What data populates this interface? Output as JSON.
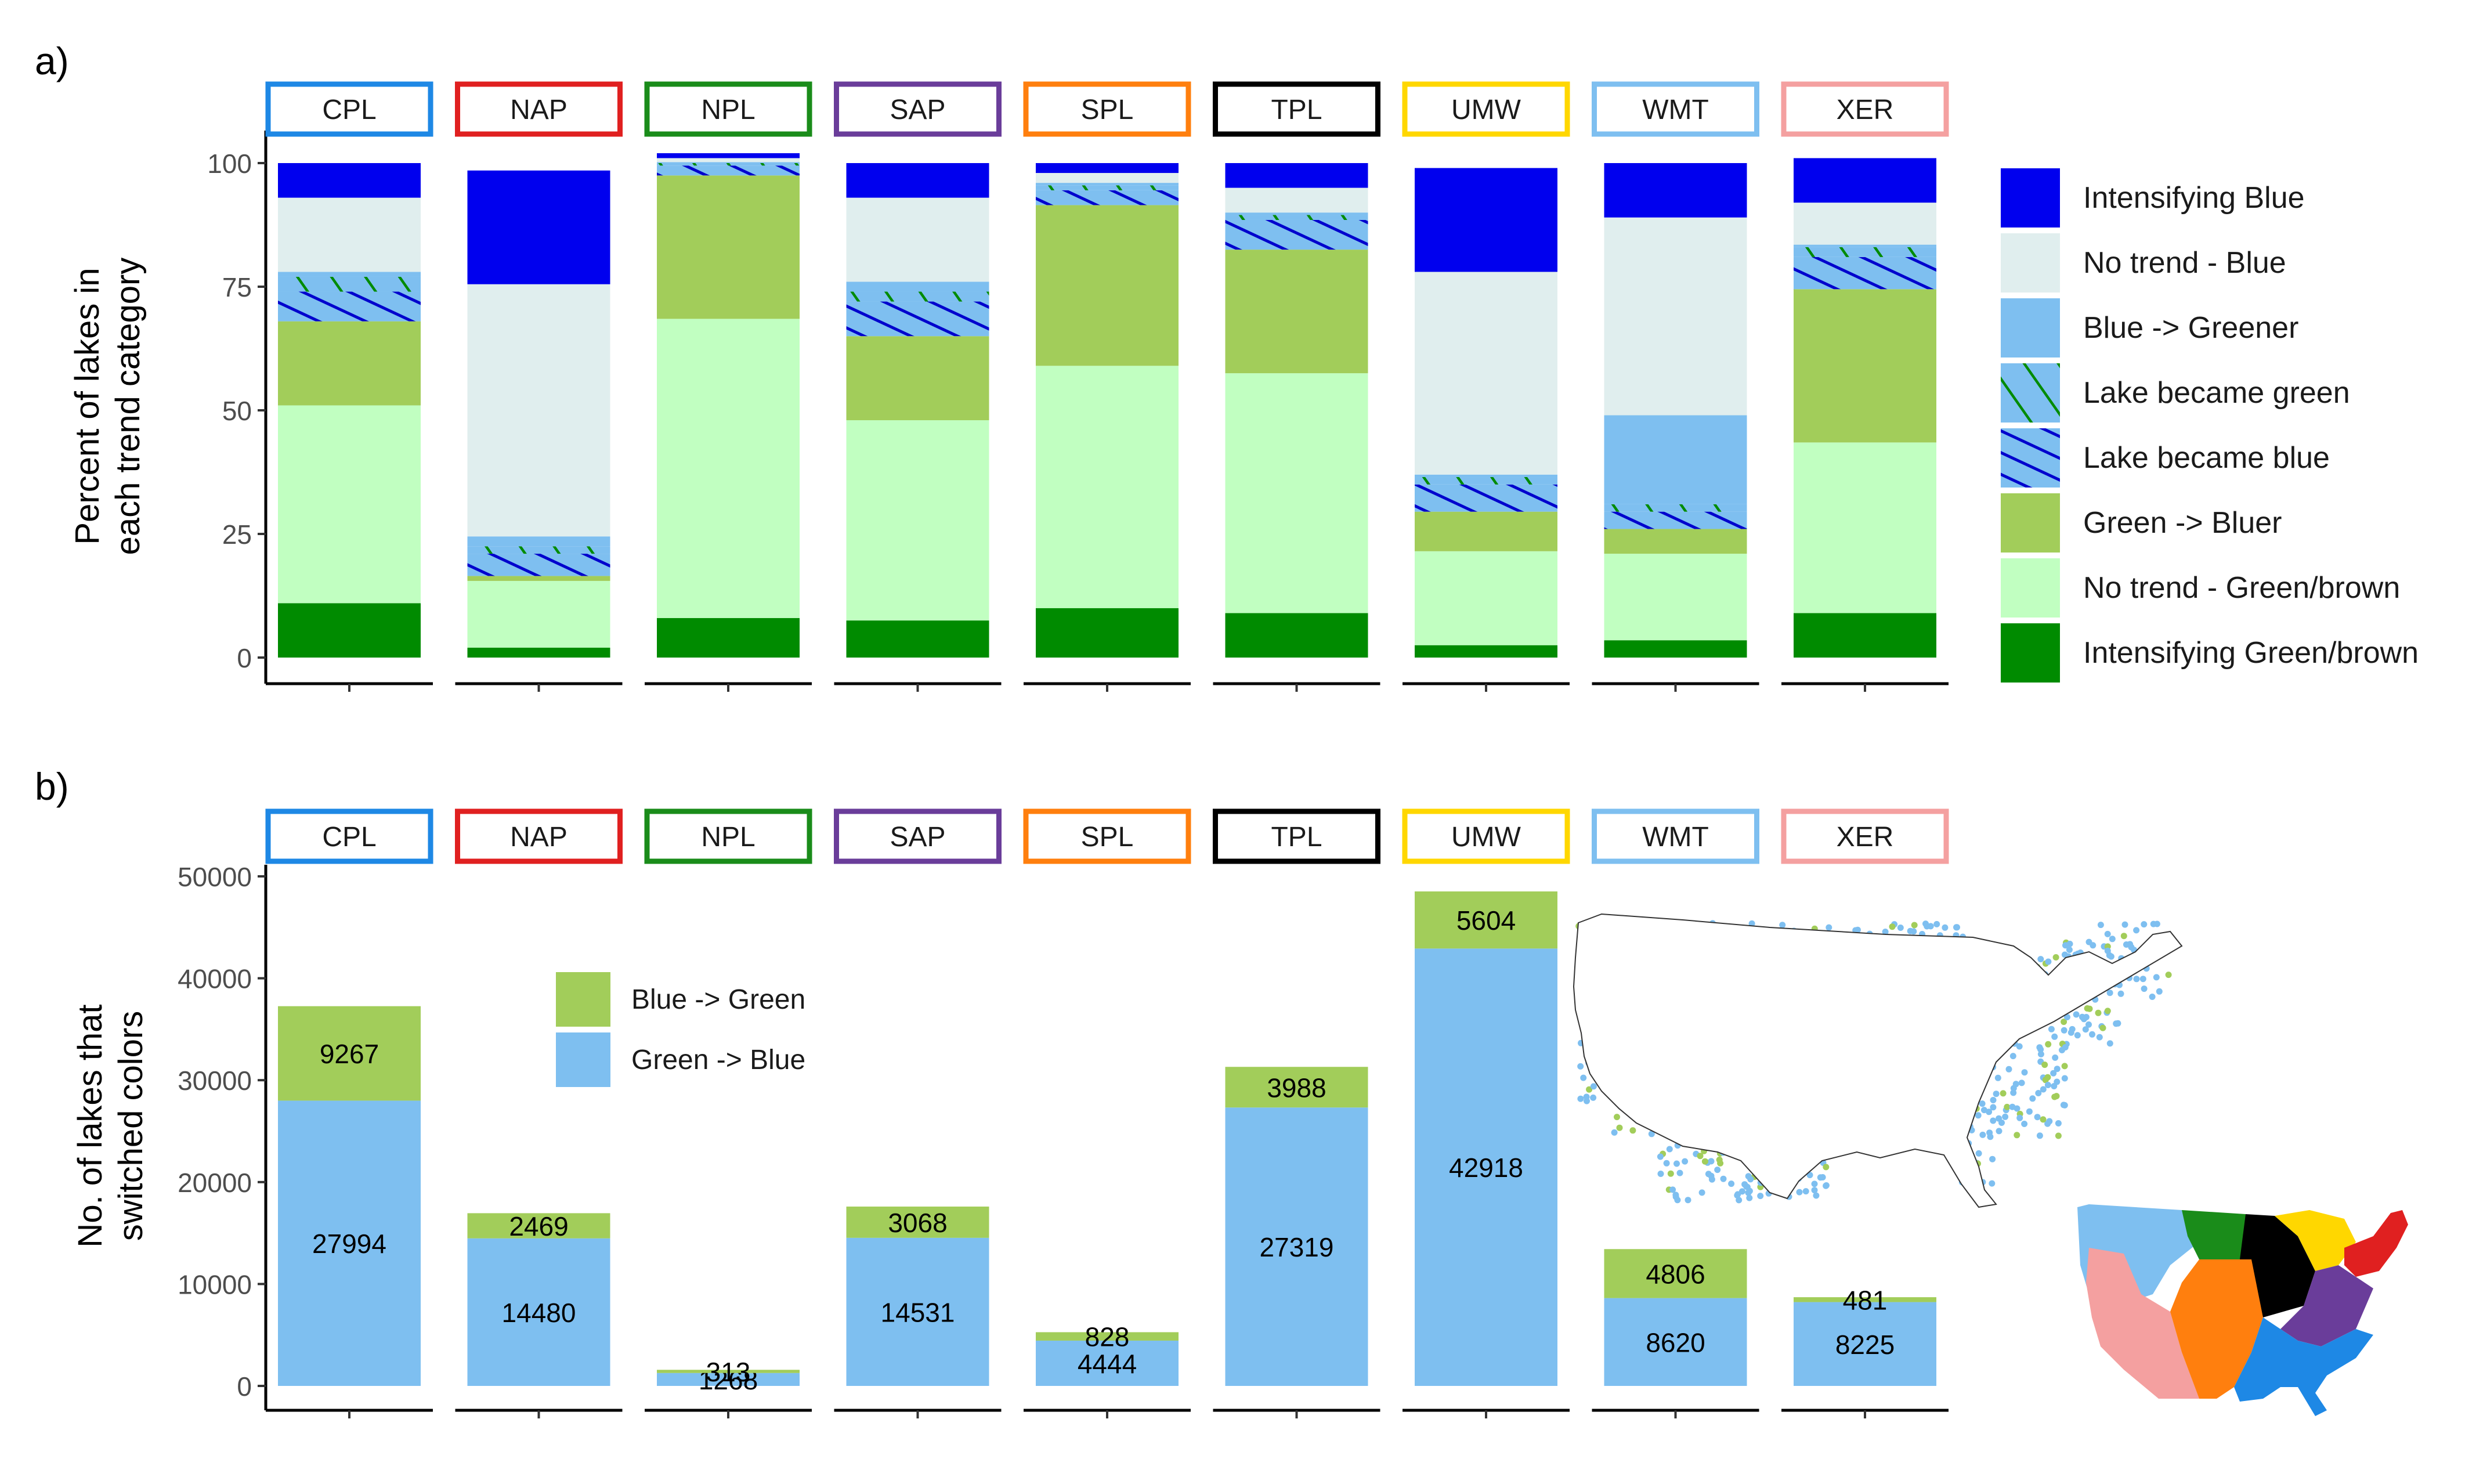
{
  "colors": {
    "intensifying_blue": "#0000ee",
    "no_trend_blue": "#e0eeee",
    "blue_greener": "#7ebff0",
    "green_bluer": "#a2cd5a",
    "no_trend_green": "#c1ffc1",
    "intensifying_green": "#008b00",
    "hatch_green": "#008b00",
    "hatch_blue": "#0000cd",
    "bar_blue_to_green": "#a2cd5a",
    "bar_green_to_blue": "#7ebff0",
    "point_green_to_blue": "#7ebff0",
    "point_blue_to_green": "#a2cd5a"
  },
  "regions": [
    {
      "code": "CPL",
      "color": "#1e88e5"
    },
    {
      "code": "NAP",
      "color": "#e02020"
    },
    {
      "code": "NPL",
      "color": "#1a8c1a"
    },
    {
      "code": "SAP",
      "color": "#6a3d9a"
    },
    {
      "code": "SPL",
      "color": "#ff7f0e"
    },
    {
      "code": "TPL",
      "color": "#000000"
    },
    {
      "code": "UMW",
      "color": "#ffd700"
    },
    {
      "code": "WMT",
      "color": "#7ebff0"
    },
    {
      "code": "XER",
      "color": "#f4a0a0"
    }
  ],
  "chart_data": [
    {
      "type": "bar",
      "stacked": true,
      "panel_label": "a)",
      "ylabel_line1": "Percent of lakes in",
      "ylabel_line2": "each trend category",
      "ylim": [
        0,
        100
      ],
      "yticks": [
        0,
        25,
        50,
        75,
        100
      ],
      "categories": [
        "CPL",
        "NAP",
        "NPL",
        "SAP",
        "SPL",
        "TPL",
        "UMW",
        "WMT",
        "XER"
      ],
      "series": [
        {
          "key": "intensifying_green",
          "name": "Intensifying Green/brown",
          "values": [
            11,
            2,
            8,
            7.5,
            10,
            9,
            2.5,
            3.5,
            9
          ]
        },
        {
          "key": "no_trend_green",
          "name": "No trend - Green/brown",
          "values": [
            40,
            13.5,
            60.5,
            40.5,
            49,
            48.5,
            19,
            17.5,
            34.5
          ]
        },
        {
          "key": "green_bluer",
          "name": "Green -> Bluer",
          "values": [
            17,
            1,
            29,
            17,
            32.5,
            25,
            8,
            5,
            31
          ]
        },
        {
          "key": "lake_blue",
          "name": "Lake became blue",
          "values": [
            6,
            4.5,
            2,
            7,
            3,
            6,
            5.5,
            3.5,
            6.5
          ]
        },
        {
          "key": "lake_green",
          "name": "Lake became green",
          "values": [
            3,
            1.5,
            0.5,
            2,
            1,
            1,
            1.5,
            1.5,
            2
          ]
        },
        {
          "key": "blue_greener",
          "name": "Blue -> Greener",
          "values": [
            1,
            2,
            0.2,
            2,
            0.5,
            0.5,
            0.5,
            18,
            0.5
          ]
        },
        {
          "key": "no_trend_blue",
          "name": "No trend - Blue",
          "values": [
            15,
            51,
            0.8,
            17,
            2,
            5,
            41,
            40,
            8.5
          ]
        },
        {
          "key": "intensifying_blue",
          "name": "Intensifying Blue",
          "values": [
            7,
            23,
            1,
            7,
            2,
            5,
            21,
            11,
            9
          ]
        }
      ],
      "legend": [
        {
          "key": "intensifying_blue",
          "label": "Intensifying Blue"
        },
        {
          "key": "no_trend_blue",
          "label": "No trend - Blue"
        },
        {
          "key": "blue_greener",
          "label": "Blue -> Greener"
        },
        {
          "key": "lake_green",
          "label": "Lake became green"
        },
        {
          "key": "lake_blue",
          "label": "Lake became blue"
        },
        {
          "key": "green_bluer",
          "label": "Green -> Bluer"
        },
        {
          "key": "no_trend_green",
          "label": "No trend - Green/brown"
        },
        {
          "key": "intensifying_green",
          "label": "Intensifying Green/brown"
        }
      ]
    },
    {
      "type": "bar",
      "stacked": true,
      "panel_label": "b)",
      "ylabel_line1": "No. of lakes that",
      "ylabel_line2": "switched colors",
      "ylim": [
        0,
        50000
      ],
      "yticks": [
        0,
        10000,
        20000,
        30000,
        40000,
        50000
      ],
      "categories": [
        "CPL",
        "NAP",
        "NPL",
        "SAP",
        "SPL",
        "TPL",
        "UMW",
        "WMT",
        "XER"
      ],
      "series": [
        {
          "key": "bar_green_to_blue",
          "name": "Green -> Blue",
          "values": [
            27994,
            14480,
            1268,
            14531,
            4444,
            27319,
            42918,
            8620,
            8225
          ]
        },
        {
          "key": "bar_blue_to_green",
          "name": "Blue -> Green",
          "values": [
            9267,
            2469,
            313,
            3068,
            828,
            3988,
            5604,
            4806,
            481
          ]
        }
      ],
      "legend": [
        {
          "key": "bar_blue_to_green",
          "label": "Blue -> Green"
        },
        {
          "key": "bar_green_to_blue",
          "label": "Green -> Blue"
        }
      ]
    }
  ]
}
